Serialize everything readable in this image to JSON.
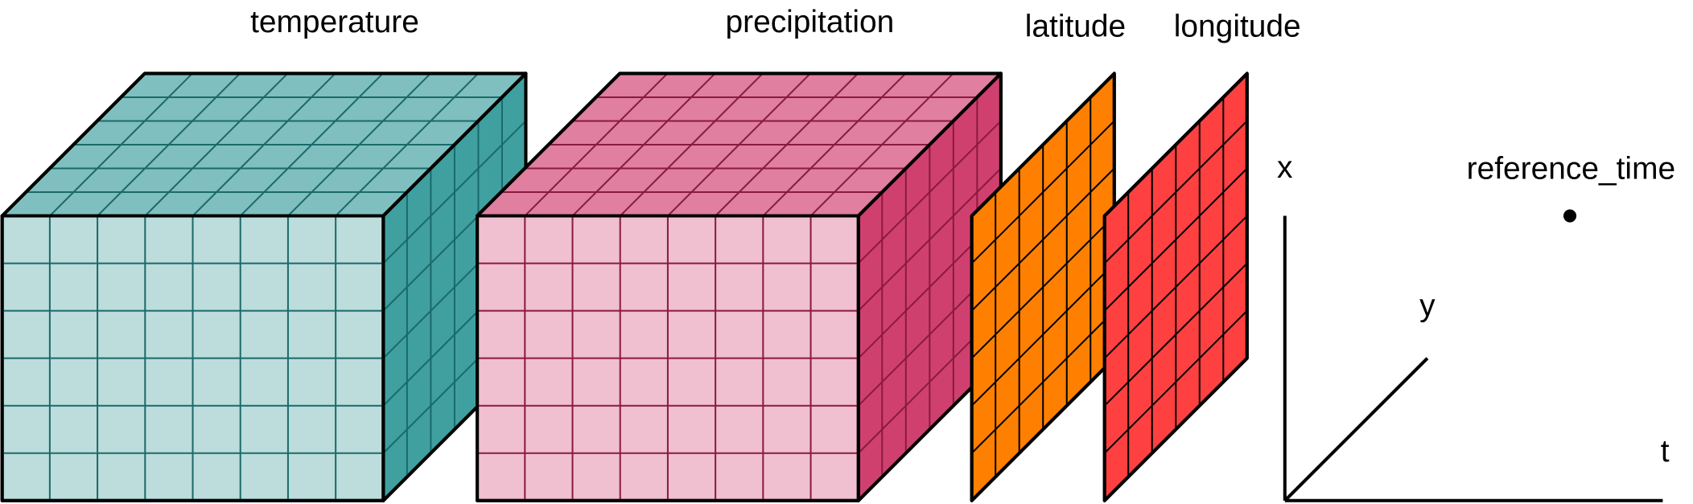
{
  "variables": [
    {
      "label": "temperature"
    },
    {
      "label": "precipitation"
    }
  ],
  "coordinates": [
    {
      "label": "latitude"
    },
    {
      "label": "longitude"
    },
    {
      "label": "reference_time"
    }
  ],
  "dimensions": [
    {
      "label": "x"
    },
    {
      "label": "y"
    },
    {
      "label": "t"
    }
  ]
}
